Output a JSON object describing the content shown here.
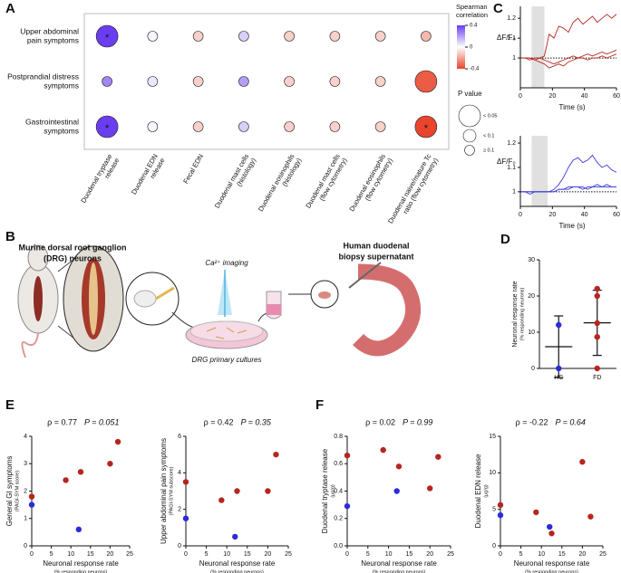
{
  "panel_labels": [
    "A",
    "B",
    "C",
    "D",
    "E",
    "F"
  ],
  "illustration": {
    "left_title": [
      "Murine dorsal root ganglion",
      "(DRG) neurons"
    ],
    "right_title": [
      "Human duodenal",
      "biopsy supernatant"
    ],
    "imaging": "Ca²⁺ imaging",
    "culture": "DRG primary cultures"
  },
  "chart_data": [
    {
      "type": "bubble_matrix",
      "rows": [
        [
          "Upper abdominal",
          "pain symptoms"
        ],
        [
          "Postprandial distress",
          "symptoms"
        ],
        [
          "Gastrointestinal",
          "symptoms"
        ]
      ],
      "columns": [
        [
          "Duodenal tryptase",
          "release"
        ],
        [
          "Duodenal EDN",
          "release"
        ],
        [
          "Fecal EDN"
        ],
        [
          "Duodenal mast cells",
          "(histology)"
        ],
        [
          "Duodenal eosinophils",
          "(histology)"
        ],
        [
          "Duodenal mast cells",
          "(flow cytometry)"
        ],
        [
          "Duodenal eosinophils",
          "(flow cytometry)"
        ],
        [
          "Duodenal naive/mature Tc",
          "ratio (flow cytometry)"
        ]
      ],
      "values": [
        [
          0.4,
          0.02,
          -0.1,
          0.1,
          -0.1,
          -0.1,
          -0.1,
          -0.15
        ],
        [
          0.25,
          0.05,
          -0.1,
          0.2,
          -0.1,
          -0.1,
          -0.1,
          -0.35
        ],
        [
          0.4,
          0.02,
          -0.1,
          0.1,
          -0.1,
          -0.1,
          -0.1,
          -0.4
        ]
      ],
      "p_class": [
        [
          0,
          2,
          2,
          2,
          2,
          2,
          2,
          2
        ],
        [
          2,
          2,
          2,
          2,
          2,
          2,
          2,
          0
        ],
        [
          0,
          2,
          2,
          2,
          2,
          2,
          2,
          0
        ]
      ],
      "star": "*",
      "starred": [
        [
          0,
          0
        ],
        [
          2,
          0
        ],
        [
          2,
          7
        ]
      ],
      "colorbar": {
        "title": [
          "Spearman",
          "correlation"
        ],
        "lim": [
          -0.4,
          0.4
        ],
        "ticks": [
          0.4,
          0,
          -0.4
        ],
        "colors": [
          "#e8452c",
          "#ffffff",
          "#6a3df0"
        ]
      },
      "size_legend": {
        "title": "P value",
        "labels": [
          "< 0.05",
          "< 0.1",
          "≥ 0.1"
        ]
      }
    },
    {
      "type": "line",
      "ylabel": "ΔF/F₀",
      "xlabel": "Time (s)",
      "xlim": [
        0,
        60
      ],
      "xticks": [
        0,
        20,
        40,
        60
      ],
      "ylim": [
        0.85,
        1.26
      ],
      "yticks": [
        1,
        1.1,
        1.2
      ],
      "shade": [
        7,
        15
      ],
      "baseline": 1,
      "x": [
        0,
        3,
        6,
        9,
        12,
        15,
        18,
        21,
        24,
        27,
        30,
        33,
        36,
        39,
        42,
        45,
        48,
        51,
        54,
        57,
        60
      ],
      "series": [
        {
          "color": "#b5261e",
          "values": [
            1,
            1,
            0.99,
            1,
            1,
            1.01,
            1.12,
            1.1,
            1.16,
            1.15,
            1.13,
            1.18,
            1.2,
            1.17,
            1.19,
            1.21,
            1.18,
            1.2,
            1.22,
            1.2,
            1.22
          ]
        },
        {
          "color": "#b5261e",
          "values": [
            1,
            1,
            1,
            0.99,
            1,
            0.99,
            0.98,
            0.97,
            0.98,
            0.99,
            1,
            1.01,
            1,
            1.01,
            1.02,
            1.01,
            1.02,
            1.03,
            1.02,
            1.03,
            1.04
          ]
        },
        {
          "color": "#b5261e",
          "values": [
            1,
            1,
            1,
            0.99,
            0.98,
            0.97,
            0.95,
            0.96,
            0.97,
            0.96,
            0.98,
            0.99,
            1,
            1,
            0.99,
            1,
            1,
            1.01,
            1,
            1.01,
            1.02
          ]
        }
      ]
    },
    {
      "type": "line",
      "ylabel": "ΔF/F₀",
      "xlabel": "Time (s)",
      "xlim": [
        0,
        60
      ],
      "xticks": [
        0,
        20,
        40,
        60
      ],
      "ylim": [
        0.94,
        1.23
      ],
      "yticks": [
        1,
        1.1,
        1.2
      ],
      "shade": [
        7,
        17
      ],
      "baseline": 1,
      "x": [
        0,
        3,
        6,
        9,
        12,
        15,
        18,
        21,
        24,
        27,
        30,
        33,
        36,
        39,
        42,
        45,
        48,
        51,
        54,
        57,
        60
      ],
      "series": [
        {
          "color": "#3a3ad8",
          "values": [
            1,
            1,
            1,
            1,
            1,
            1,
            1,
            1.01,
            1.03,
            1.06,
            1.1,
            1.13,
            1.14,
            1.12,
            1.13,
            1.15,
            1.12,
            1.1,
            1.11,
            1.09,
            1.08
          ]
        },
        {
          "color": "#3a3ad8",
          "values": [
            1,
            1,
            1,
            1,
            1,
            1,
            1,
            1,
            1.01,
            1.01,
            1.02,
            1.02,
            1.02,
            1.01,
            1.02,
            1.02,
            1.03,
            1.02,
            1.02,
            1.02,
            1.02
          ]
        },
        {
          "color": "#3a3ad8",
          "values": [
            1,
            1,
            0.99,
            1,
            1,
            1,
            1,
            1,
            1.01,
            1.01,
            1.01,
            1.02,
            1.02,
            1.02,
            1.01,
            1.02,
            1.02,
            1.02,
            1.03,
            1.02,
            1.02
          ]
        }
      ]
    },
    {
      "type": "dot",
      "ylabel": "Neuronal response rate",
      "ylabel_sub": "(% responding neurons)",
      "ylim": [
        0,
        30
      ],
      "yticks": [
        0,
        10,
        20,
        30
      ],
      "categories": [
        "HC",
        "FD"
      ],
      "groups": [
        {
          "color": "#2b2bd9",
          "values": [
            0,
            12
          ]
        },
        {
          "color": "#b5261e",
          "values": [
            0,
            8.7,
            12.5,
            20,
            22
          ]
        }
      ],
      "means": [
        6,
        12.6
      ],
      "sds": [
        8.5,
        9
      ]
    },
    {
      "type": "scatter",
      "rho_label": "ρ = 0.77",
      "p_label": "P = 0.051",
      "ylabel": "General GI symptoms",
      "ylabel_sub": "(PAGI-SYM score)",
      "xlabel": "Neuronal response rate",
      "xlabel_sub": "(% responding neurons)",
      "xlim": [
        0,
        25
      ],
      "xticks": [
        0,
        5,
        10,
        15,
        20,
        25
      ],
      "ylim": [
        0,
        4
      ],
      "yticks": [
        0,
        1,
        2,
        3,
        4
      ],
      "series": [
        {
          "color": "#2b2bd9",
          "x": [
            0,
            12
          ],
          "values": [
            1.5,
            0.6
          ]
        },
        {
          "color": "#b5261e",
          "x": [
            0,
            8.7,
            12.5,
            20,
            22
          ],
          "values": [
            1.8,
            2.4,
            2.7,
            3.0,
            3.8
          ]
        }
      ]
    },
    {
      "type": "scatter",
      "rho_label": "ρ = 0.42",
      "p_label": "P = 0.35",
      "ylabel": "Upper abdominal pain symptoms",
      "ylabel_sub": "(PAGI-SYM subscore)",
      "xlabel": "Neuronal response rate",
      "xlabel_sub": "(% responding neurons)",
      "xlim": [
        0,
        25
      ],
      "xticks": [
        0,
        5,
        10,
        15,
        20,
        25
      ],
      "ylim": [
        0,
        6
      ],
      "yticks": [
        0,
        2,
        4,
        6
      ],
      "series": [
        {
          "color": "#2b2bd9",
          "x": [
            0,
            12
          ],
          "values": [
            1.5,
            0.5
          ]
        },
        {
          "color": "#b5261e",
          "x": [
            0,
            8.7,
            12.5,
            20,
            22
          ],
          "values": [
            3.5,
            2.5,
            3,
            3,
            5
          ]
        }
      ]
    },
    {
      "type": "scatter",
      "rho_label": "ρ = 0.02",
      "p_label": "P = 0.99",
      "ylabel": "Duodenal tryptase release",
      "ylabel_sub": "(µg/g)",
      "xlabel": "Neuronal response rate",
      "xlabel_sub": "(% responding neurons)",
      "xlim": [
        0,
        25
      ],
      "xticks": [
        0,
        5,
        10,
        15,
        20,
        25
      ],
      "ylim": [
        0,
        0.8
      ],
      "yticks": [
        {
          "value": 0,
          "label": "0.0"
        },
        0.2,
        0.4,
        0.6,
        0.8
      ],
      "series": [
        {
          "color": "#2b2bd9",
          "x": [
            0,
            12
          ],
          "values": [
            0.29,
            0.4
          ]
        },
        {
          "color": "#b5261e",
          "x": [
            0,
            8.7,
            12.5,
            20,
            22
          ],
          "values": [
            0.66,
            0.7,
            0.58,
            0.42,
            0.65
          ]
        }
      ]
    },
    {
      "type": "scatter",
      "rho_label": "ρ = -0.22",
      "p_label": "P = 0.64",
      "ylabel": "Duodenal EDN release",
      "ylabel_sub": "(µg/g)",
      "xlabel": "Neuronal response rate",
      "xlabel_sub": "(% responding neurons)",
      "xlim": [
        0,
        25
      ],
      "xticks": [
        0,
        5,
        10,
        15,
        20,
        25
      ],
      "ylim": [
        0,
        15
      ],
      "yticks": [
        0,
        5,
        10,
        15
      ],
      "series": [
        {
          "color": "#2b2bd9",
          "x": [
            0,
            12
          ],
          "values": [
            4.2,
            2.6
          ]
        },
        {
          "color": "#b5261e",
          "x": [
            0,
            8.7,
            12.5,
            20,
            22
          ],
          "values": [
            5.6,
            4.6,
            1.7,
            11.5,
            4.0
          ]
        }
      ]
    }
  ]
}
